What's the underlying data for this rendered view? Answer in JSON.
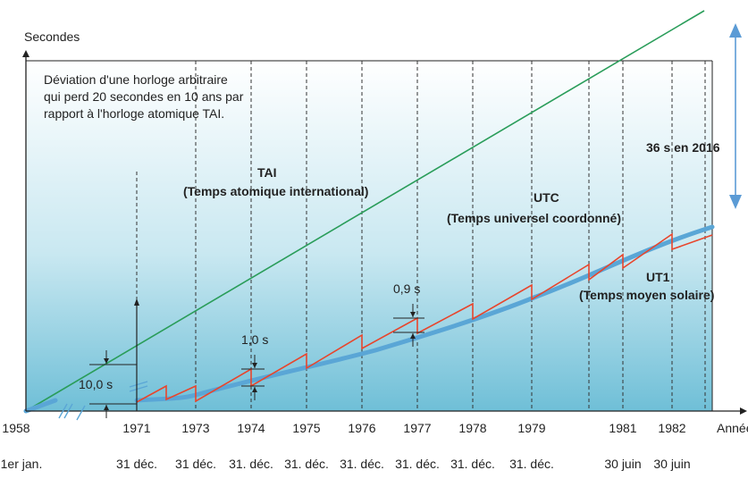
{
  "axis": {
    "y_label": "Secondes",
    "x_label": "Année",
    "year_ticks": [
      "1958",
      "1971",
      "1973",
      "1974",
      "1975",
      "1976",
      "1977",
      "1978",
      "1979",
      "1981",
      "1982"
    ],
    "date_ticks": [
      "1er jan.",
      "31 déc.",
      "31 déc.",
      "31. déc.",
      "31. déc.",
      "31. déc.",
      "31. déc.",
      "31. déc.",
      "31. déc.",
      "30 juin",
      "30 juin"
    ]
  },
  "note": {
    "line1": "Déviation d'une horloge arbitraire",
    "line2": "qui perd 20 secondes en 10 ans par",
    "line3": "rapport à l'horloge atomique TAI."
  },
  "labels": {
    "tai_name": "TAI",
    "tai_full": "(Temps atomique international)",
    "utc_name": "UTC",
    "utc_full": "(Temps universel coordonné)",
    "ut1_name": "UT1",
    "ut1_full": "(Temps moyen solaire)",
    "offset_2016": "36 s en 2016",
    "step_10": "10,0 s",
    "step_1": "1,0 s",
    "step_09": "0,9 s"
  },
  "colors": {
    "tai": "#2a9d5a",
    "utc": "#e8452c",
    "ut1": "#5aa6d6",
    "arrow": "#5b9bd5",
    "bg_top": "#ffffff",
    "bg_bottom": "#6fc0d8"
  }
}
